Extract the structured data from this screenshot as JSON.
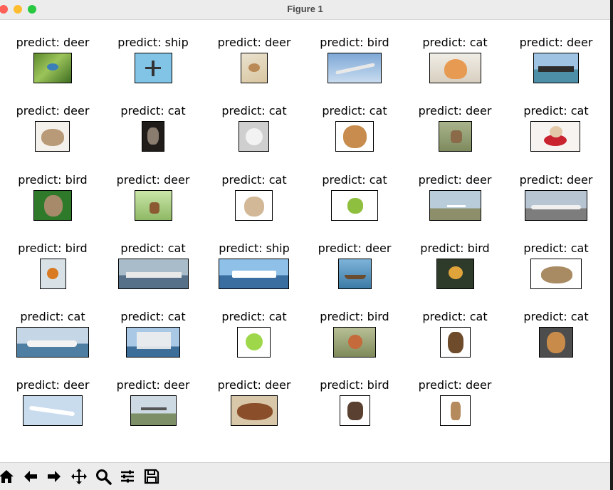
{
  "window": {
    "title": "Figure 1"
  },
  "grid": [
    [
      {
        "label": "predict: deer",
        "image": "bird-on-branch-photo"
      },
      {
        "label": "predict: ship",
        "image": "airplane-in-sky-photo"
      },
      {
        "label": "predict: deer",
        "image": "bird-in-flight-photo"
      },
      {
        "label": "predict: bird",
        "image": "airliner-photo"
      },
      {
        "label": "predict: cat",
        "image": "kitten-photo"
      },
      {
        "label": "predict: deer",
        "image": "cargo-ship-photo"
      }
    ],
    [
      {
        "label": "predict: deer",
        "image": "frog-photo"
      },
      {
        "label": "predict: cat",
        "image": "cat-dark-photo"
      },
      {
        "label": "predict: cat",
        "image": "cat-white-photo"
      },
      {
        "label": "predict: cat",
        "image": "cat-face-photo"
      },
      {
        "label": "predict: deer",
        "image": "deer-photo"
      },
      {
        "label": "predict: cat",
        "image": "kitten-in-hat-photo"
      }
    ],
    [
      {
        "label": "predict: bird",
        "image": "puppy-photo"
      },
      {
        "label": "predict: deer",
        "image": "stag-photo"
      },
      {
        "label": "predict: cat",
        "image": "tabby-kitten-photo"
      },
      {
        "label": "predict: cat",
        "image": "tree-frog-photo"
      },
      {
        "label": "predict: deer",
        "image": "small-plane-photo"
      },
      {
        "label": "predict: deer",
        "image": "airliner-on-runway-photo"
      }
    ],
    [
      {
        "label": "predict: bird",
        "image": "kingfisher-photo"
      },
      {
        "label": "predict: cat",
        "image": "naval-ship-photo"
      },
      {
        "label": "predict: ship",
        "image": "ferry-photo"
      },
      {
        "label": "predict: deer",
        "image": "boat-photo"
      },
      {
        "label": "predict: bird",
        "image": "colorful-bird-photo"
      },
      {
        "label": "predict: cat",
        "image": "toad-photo"
      }
    ],
    [
      {
        "label": "predict: cat",
        "image": "yacht-photo"
      },
      {
        "label": "predict: cat",
        "image": "tall-ship-photo"
      },
      {
        "label": "predict: cat",
        "image": "cartoon-frog-photo"
      },
      {
        "label": "predict: bird",
        "image": "robin-photo"
      },
      {
        "label": "predict: cat",
        "image": "german-shepherd-photo"
      },
      {
        "label": "predict: cat",
        "image": "beagle-photo"
      }
    ],
    [
      {
        "label": "predict: deer",
        "image": "jet-airliner-photo"
      },
      {
        "label": "predict: deer",
        "image": "jet-in-flight-photo"
      },
      {
        "label": "predict: deer",
        "image": "dogs-lying-photo"
      },
      {
        "label": "predict: bird",
        "image": "beagle-standing-photo"
      },
      {
        "label": "predict: deer",
        "image": "fawn-photo"
      }
    ]
  ],
  "toolbar": [
    {
      "name": "home-icon"
    },
    {
      "name": "back-arrow-icon"
    },
    {
      "name": "forward-arrow-icon"
    },
    {
      "name": "pan-move-icon"
    },
    {
      "name": "zoom-magnifier-icon"
    },
    {
      "name": "configure-subplots-icon"
    },
    {
      "name": "save-floppy-icon"
    }
  ],
  "colors": {
    "titlebar": "#ececec",
    "toolbar": "#ececec",
    "close": "#fe5f57",
    "minimize": "#febc2e",
    "zoom": "#28c840"
  }
}
